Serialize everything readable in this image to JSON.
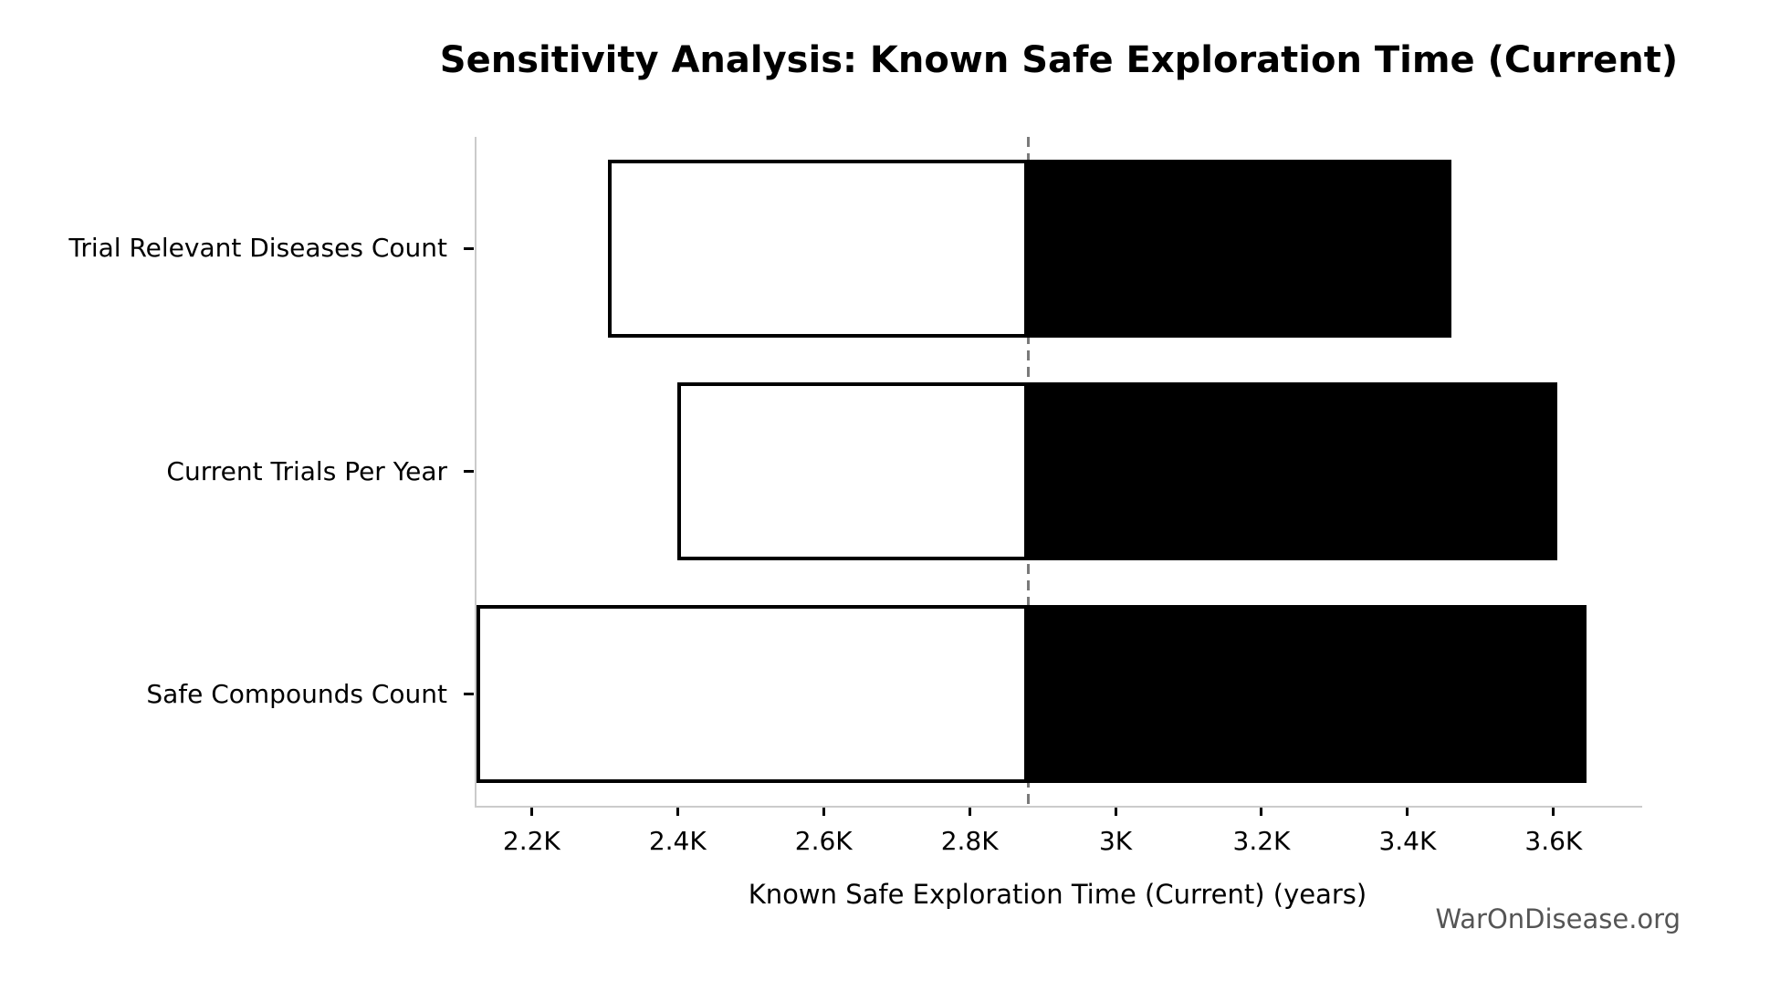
{
  "watermark": "WarOnDisease.org",
  "colors": {
    "bar_low_fill": "#ffffff",
    "bar_high_fill": "#000000",
    "bar_edge": "#000000",
    "baseline_line": "#7a7a7a",
    "spine": "#cbcbcb",
    "text": "#000000",
    "watermark_text": "#555555"
  },
  "chart_data": {
    "type": "bar",
    "subtype": "tornado-sensitivity",
    "orientation": "horizontal",
    "title": "Sensitivity Analysis: Known Safe Exploration Time (Current)",
    "xlabel": "Known Safe Exploration Time (Current) (years)",
    "ylabel": "",
    "categories": [
      "Trial Relevant Diseases Count",
      "Current Trials Per Year",
      "Safe Compounds Count"
    ],
    "baseline": 2880,
    "series": [
      {
        "name": "low",
        "values": [
          2305,
          2400,
          2125
        ]
      },
      {
        "name": "high",
        "values": [
          3460,
          3605,
          3645
        ]
      }
    ],
    "xlim": [
      2122,
      3719
    ],
    "xticks": {
      "values": [
        2200,
        2400,
        2600,
        2800,
        3000,
        3200,
        3400,
        3600
      ],
      "labels": [
        "2.2K",
        "2.4K",
        "2.6K",
        "2.8K",
        "3K",
        "3.2K",
        "3.4K",
        "3.6K"
      ]
    },
    "grid": false,
    "legend": "none",
    "baseline_style": "dashed"
  }
}
